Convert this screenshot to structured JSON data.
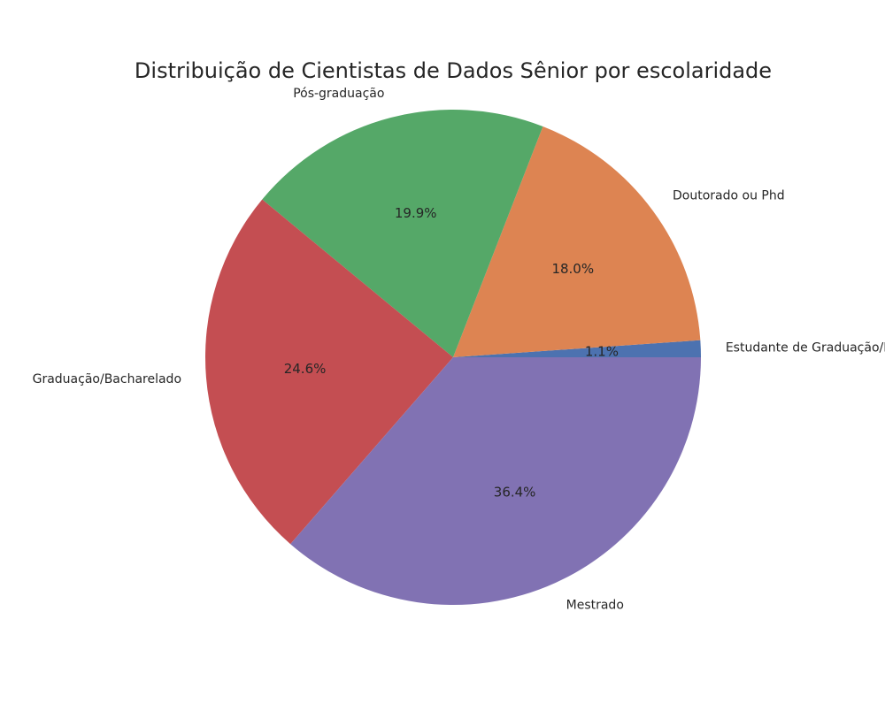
{
  "chart_data": {
    "type": "pie",
    "title": "Distribuição de Cientistas de Dados Sênior por escolaridade",
    "start_angle_deg": 0,
    "direction": "counterclockwise",
    "slices": [
      {
        "label": "Estudante de Graduação/Não completei",
        "value": 1.1,
        "pct_label": "1.1%",
        "color": "#4c72b0"
      },
      {
        "label": "Doutorado ou Phd",
        "value": 18.0,
        "pct_label": "18.0%",
        "color": "#dd8452"
      },
      {
        "label": "Pós-graduação",
        "value": 19.9,
        "pct_label": "19.9%",
        "color": "#55a868"
      },
      {
        "label": "Graduação/Bacharelado",
        "value": 24.6,
        "pct_label": "24.6%",
        "color": "#c44e52"
      },
      {
        "label": "Mestrado",
        "value": 36.4,
        "pct_label": "36.4%",
        "color": "#8172b3"
      }
    ]
  }
}
